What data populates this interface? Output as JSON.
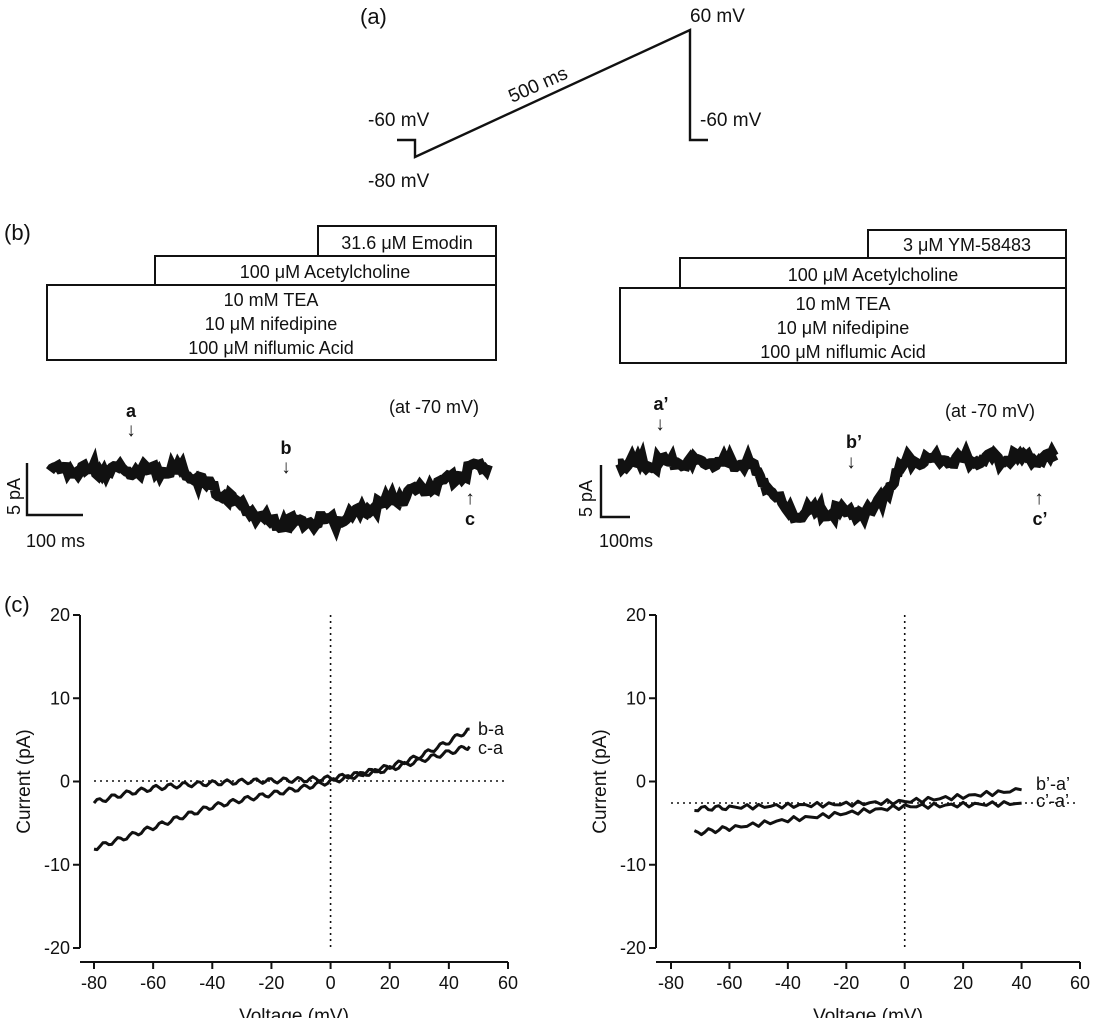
{
  "panel_labels": {
    "a": "(a)",
    "b": "(b)",
    "c": "(c)"
  },
  "protocol": {
    "top_voltage": "60 mV",
    "hold_voltage": "-60 mV",
    "end_voltage": "-60 mV",
    "start_voltage": "-80 mV",
    "duration": "500 ms"
  },
  "left_drugs": {
    "top": "31.6 μM Emodin",
    "middle": "100 μM Acetylcholine",
    "bottom_1": "10 mM TEA",
    "bottom_2": "10 μM nifedipine",
    "bottom_3": "100 μM niflumic Acid"
  },
  "right_drugs": {
    "top": "3 μM YM-58483",
    "middle": "100 μM Acetylcholine",
    "bottom_1": "10 mM TEA",
    "bottom_2": "10 μM nifedipine",
    "bottom_3": "100 μM niflumic Acid"
  },
  "left_trace": {
    "holding": "(at -70 mV)",
    "marker_a": "a",
    "marker_b": "b",
    "marker_c": "c",
    "scale_y": "5 pA",
    "scale_x": "100 ms",
    "arrow_down": "↓",
    "arrow_up": "↑"
  },
  "right_trace": {
    "holding": "(at -70 mV)",
    "marker_a": "a’",
    "marker_b": "b’",
    "marker_c": "c’",
    "scale_y": "5 pA",
    "scale_x": "100ms",
    "arrow_down": "↓",
    "arrow_up": "↑"
  },
  "chart_data": [
    {
      "type": "line",
      "xlabel": "Voltage (mV)",
      "ylabel": "Current (pA)",
      "xlim": [
        -80,
        60
      ],
      "ylim": [
        -20,
        20
      ],
      "xticks": [
        "-80",
        "-60",
        "-40",
        "-20",
        "0",
        "20",
        "40",
        "60"
      ],
      "yticks": [
        "-20",
        "-10",
        "0",
        "10",
        "20"
      ],
      "series": [
        {
          "name": "b-a",
          "x": [
            -80,
            -70,
            -60,
            -50,
            -40,
            -30,
            -20,
            -10,
            0,
            10,
            20,
            30,
            40,
            47
          ],
          "values": [
            -2.5,
            -1.5,
            -0.8,
            -0.4,
            -0.2,
            0.0,
            0.1,
            0.2,
            0.4,
            0.9,
            1.8,
            3.0,
            4.8,
            6.3
          ]
        },
        {
          "name": "c-a",
          "x": [
            -80,
            -70,
            -60,
            -50,
            -40,
            -30,
            -20,
            -10,
            0,
            10,
            20,
            30,
            40,
            47
          ],
          "values": [
            -8.0,
            -6.8,
            -5.5,
            -4.2,
            -3.0,
            -2.2,
            -1.5,
            -0.8,
            0.0,
            0.8,
            1.5,
            2.5,
            3.5,
            4.2
          ]
        }
      ]
    },
    {
      "type": "line",
      "xlabel": "Voltage (mV)",
      "ylabel": "Current (pA)",
      "xlim": [
        -80,
        60
      ],
      "ylim": [
        -20,
        20
      ],
      "xticks": [
        "-80",
        "-60",
        "-40",
        "-20",
        "0",
        "20",
        "40",
        "60"
      ],
      "yticks": [
        "-20",
        "-10",
        "0",
        "10",
        "20"
      ],
      "series": [
        {
          "name": "b’-a’",
          "x": [
            -72,
            -60,
            -40,
            -20,
            0,
            20,
            40
          ],
          "values": [
            -3.3,
            -3.1,
            -2.9,
            -2.7,
            -2.4,
            -1.8,
            -1.0
          ]
        },
        {
          "name": "c’-a’",
          "x": [
            -72,
            -60,
            -40,
            -20,
            0,
            20,
            40
          ],
          "values": [
            -6.2,
            -5.6,
            -4.6,
            -3.8,
            -3.0,
            -2.8,
            -2.6
          ]
        }
      ]
    }
  ]
}
